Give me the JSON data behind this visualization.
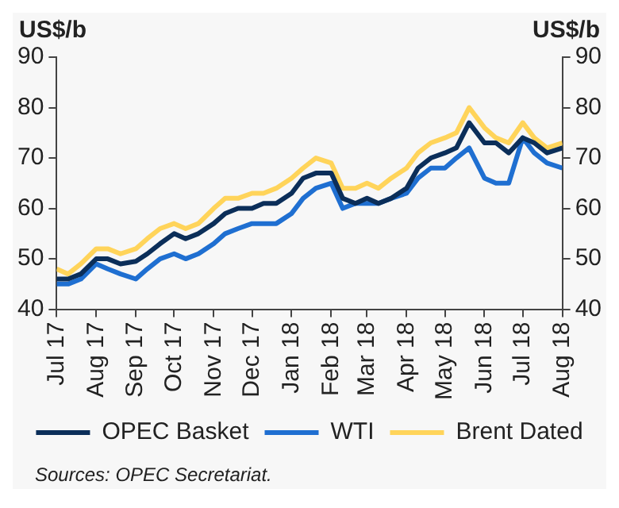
{
  "chart_data": {
    "type": "line",
    "ylabel": "US$/b",
    "y2label": "US$/b",
    "x": [
      "2017-07-01",
      "2017-07-10",
      "2017-07-20",
      "2017-08-01",
      "2017-08-10",
      "2017-08-20",
      "2017-09-01",
      "2017-09-10",
      "2017-09-20",
      "2017-10-01",
      "2017-10-10",
      "2017-10-20",
      "2017-11-01",
      "2017-11-10",
      "2017-11-20",
      "2017-12-01",
      "2017-12-10",
      "2017-12-20",
      "2018-01-01",
      "2018-01-10",
      "2018-01-20",
      "2018-02-01",
      "2018-02-10",
      "2018-02-20",
      "2018-03-01",
      "2018-03-10",
      "2018-03-20",
      "2018-04-01",
      "2018-04-10",
      "2018-04-20",
      "2018-05-01",
      "2018-05-10",
      "2018-05-20",
      "2018-06-01",
      "2018-06-10",
      "2018-06-20",
      "2018-07-01",
      "2018-07-10",
      "2018-07-20",
      "2018-08-01"
    ],
    "series": [
      {
        "name": "OPEC Basket",
        "color": "#0b2e59",
        "values": [
          46,
          46,
          47,
          50,
          50,
          49,
          49.5,
          51,
          53,
          55,
          54,
          55,
          57,
          59,
          60,
          60,
          61,
          61,
          63,
          66,
          67,
          67,
          62,
          61,
          62,
          61,
          62,
          64,
          68,
          70,
          71,
          72,
          77,
          73,
          73,
          71,
          74,
          73,
          71,
          72
        ]
      },
      {
        "name": "WTI",
        "color": "#1f6fd1",
        "values": [
          45,
          45,
          46,
          49,
          48,
          47,
          46,
          48,
          50,
          51,
          50,
          51,
          53,
          55,
          56,
          57,
          57,
          57,
          59,
          62,
          64,
          65,
          60,
          61,
          61,
          61,
          62,
          63,
          66,
          68,
          68,
          70,
          72,
          66,
          65,
          65,
          74,
          71,
          69,
          68
        ]
      },
      {
        "name": "Brent Dated",
        "color": "#ffd45a",
        "values": [
          48,
          47,
          49,
          52,
          52,
          51,
          52,
          54,
          56,
          57,
          56,
          57,
          60,
          62,
          62,
          63,
          63,
          64,
          66,
          68,
          70,
          69,
          64,
          64,
          65,
          64,
          66,
          68,
          71,
          73,
          74,
          75,
          80,
          76,
          74,
          73,
          77,
          74,
          72,
          73
        ]
      }
    ],
    "xlim": [
      "2017-07-01",
      "2018-08-01"
    ],
    "xticks": [
      {
        "value": "2017-07-01",
        "label": "Jul 17"
      },
      {
        "value": "2017-08-01",
        "label": "Aug 17"
      },
      {
        "value": "2017-09-01",
        "label": "Sep 17"
      },
      {
        "value": "2017-10-01",
        "label": "Oct 17"
      },
      {
        "value": "2017-11-01",
        "label": "Nov 17"
      },
      {
        "value": "2017-12-01",
        "label": "Dec 17"
      },
      {
        "value": "2018-01-01",
        "label": "Jan 18"
      },
      {
        "value": "2018-02-01",
        "label": "Feb 18"
      },
      {
        "value": "2018-03-01",
        "label": "Mar 18"
      },
      {
        "value": "2018-04-01",
        "label": "Apr 18"
      },
      {
        "value": "2018-05-01",
        "label": "May 18"
      },
      {
        "value": "2018-06-01",
        "label": "Jun 18"
      },
      {
        "value": "2018-07-01",
        "label": "Jul 18"
      },
      {
        "value": "2018-08-01",
        "label": "Aug 18"
      }
    ],
    "ylim": [
      40,
      90
    ],
    "yticks": [
      40,
      50,
      60,
      70,
      80,
      90
    ],
    "y2lim": [
      40,
      90
    ],
    "y2ticks": [
      40,
      50,
      60,
      70,
      80,
      90
    ],
    "grid": false,
    "legend": "bottom",
    "marker": "none",
    "line_style": "solid",
    "annotations": [
      "Sources: OPEC Secretariat."
    ]
  }
}
